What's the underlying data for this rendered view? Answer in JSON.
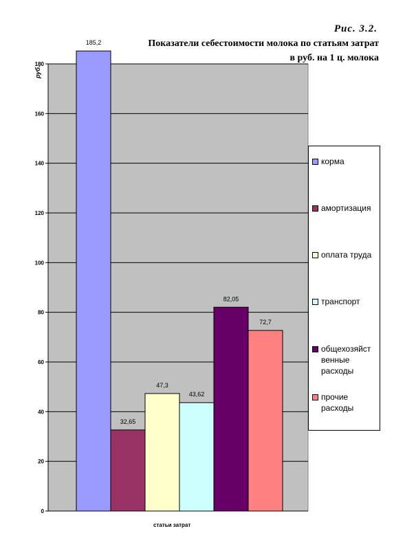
{
  "caption": "Рис. 3.2.",
  "title_line1": "Показатели себестоимости молока по статьям затрат",
  "title_line2": "в руб. на 1 ц. молока",
  "chart_data": {
    "type": "bar",
    "title": "Показатели себестоимости молока по статьям затрат в руб. на 1 ц. молока",
    "xlabel": "статьи затрат",
    "ylabel": "руб.",
    "ylim": [
      0,
      180
    ],
    "yticks": [
      0,
      20,
      40,
      60,
      80,
      100,
      120,
      140,
      160,
      180
    ],
    "ytick_labels": [
      "0",
      "20",
      "40",
      "60",
      "80",
      "100",
      "120",
      "140",
      "160",
      "180"
    ],
    "grid": true,
    "legend_position": "right",
    "series": [
      {
        "name": "корма",
        "value": 185.2,
        "label": "185,2",
        "color": "#9999ff"
      },
      {
        "name": "амортизация",
        "value": 32.65,
        "label": "32,65",
        "color": "#993366"
      },
      {
        "name": "оплата труда",
        "value": 47.3,
        "label": "47,3",
        "color": "#ffffcc"
      },
      {
        "name": "транспорт",
        "value": 43.62,
        "label": "43,62",
        "color": "#ccffff"
      },
      {
        "name": "общехозяйственные расходы",
        "value": 82.05,
        "label": "82,05",
        "color": "#660066"
      },
      {
        "name": "прочие расходы",
        "value": 72.7,
        "label": "72,7",
        "color": "#ff8080"
      }
    ],
    "legend_labels": [
      "корма",
      "амортизация",
      "оплата труда",
      "транспорт",
      "общехозяйст венные расходы",
      "прочие расходы"
    ]
  }
}
